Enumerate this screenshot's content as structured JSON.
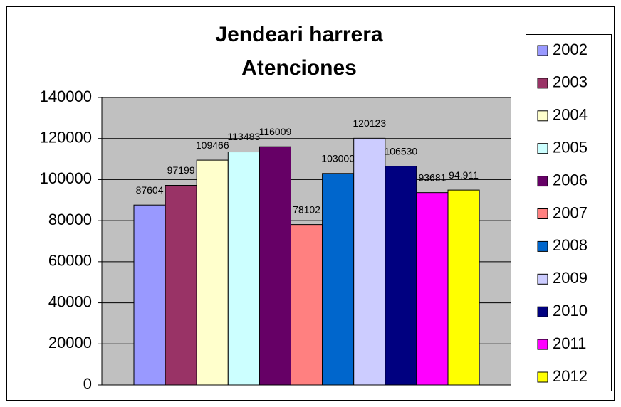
{
  "chart_data": {
    "type": "bar",
    "title": "Jendeari harrera",
    "subtitle": "Atenciones",
    "series": [
      {
        "name": "2002",
        "color": "#9999ff",
        "values": [
          87604
        ]
      },
      {
        "name": "2003",
        "color": "#993366",
        "values": [
          97199
        ]
      },
      {
        "name": "2004",
        "color": "#ffffcc",
        "values": [
          109466
        ]
      },
      {
        "name": "2005",
        "color": "#ccffff",
        "values": [
          113483
        ]
      },
      {
        "name": "2006",
        "color": "#660066",
        "values": [
          116009
        ]
      },
      {
        "name": "2007",
        "color": "#ff8080",
        "values": [
          78102
        ]
      },
      {
        "name": "2008",
        "color": "#0066cc",
        "values": [
          103000
        ]
      },
      {
        "name": "2009",
        "color": "#ccccff",
        "values": [
          120123
        ]
      },
      {
        "name": "2010",
        "color": "#000080",
        "values": [
          106530
        ]
      },
      {
        "name": "2011",
        "color": "#ff00ff",
        "values": [
          93681
        ]
      },
      {
        "name": "2012",
        "color": "#ffff00",
        "values": [
          94911
        ],
        "value_labels": [
          "94.911"
        ]
      }
    ],
    "ylim": [
      0,
      140000
    ],
    "yticks": [
      0,
      20000,
      40000,
      60000,
      80000,
      100000,
      120000,
      140000
    ],
    "grid": true,
    "legend": "right",
    "plot_background": "#c0c0c0"
  }
}
